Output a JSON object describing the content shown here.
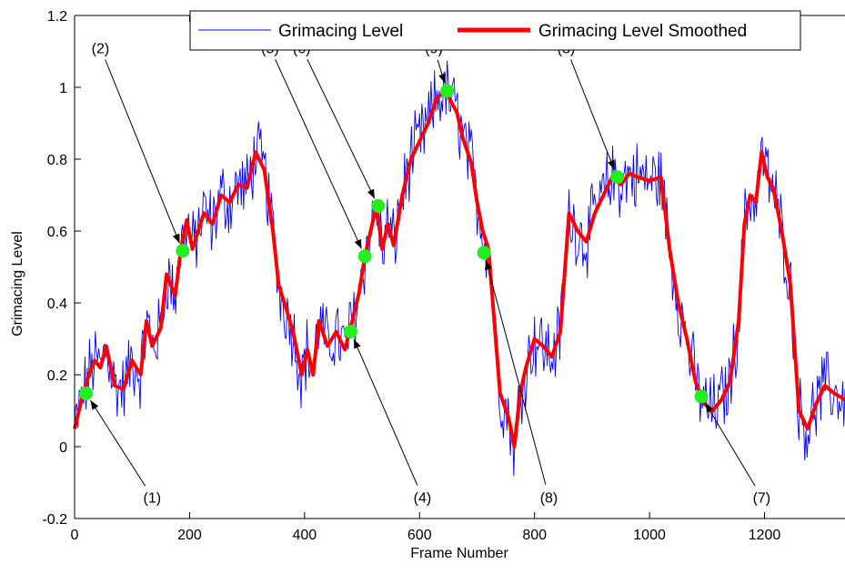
{
  "chart_data": {
    "type": "line",
    "title": "",
    "xlabel": "Frame Number",
    "ylabel": "Grimacing Level",
    "xlim": [
      0,
      1340
    ],
    "ylim": [
      -0.2,
      1.2
    ],
    "xticks": [
      0,
      200,
      400,
      600,
      800,
      1000,
      1200
    ],
    "yticks": [
      -0.2,
      0,
      0.2,
      0.4,
      0.6,
      0.8,
      1,
      1.2
    ],
    "xtick_labels": [
      "0",
      "200",
      "400",
      "600",
      "800",
      "1000",
      "1200"
    ],
    "ytick_labels": [
      "-0.2",
      "0",
      "0.2",
      "0.4",
      "0.6",
      "0.8",
      "1",
      "1.2"
    ],
    "grid": false,
    "legend_position": "top-right",
    "legend": [
      "Grimacing Level",
      "Grimacing Level Smoothed"
    ],
    "series": [
      {
        "name": "Grimacing Level",
        "color": "#0000ff",
        "noise_amplitude": 0.09,
        "description_points_from": "smoothed"
      },
      {
        "name": "Grimacing Level Smoothed",
        "color": "#ff0000",
        "x": [
          0,
          15,
          25,
          35,
          45,
          55,
          70,
          85,
          100,
          115,
          125,
          135,
          150,
          160,
          175,
          185,
          195,
          205,
          215,
          225,
          240,
          255,
          270,
          285,
          300,
          315,
          330,
          345,
          355,
          365,
          380,
          395,
          405,
          415,
          425,
          440,
          455,
          470,
          480,
          495,
          505,
          515,
          525,
          535,
          545,
          555,
          570,
          585,
          600,
          615,
          630,
          645,
          655,
          665,
          675,
          690,
          700,
          710,
          720,
          730,
          740,
          755,
          765,
          775,
          785,
          800,
          815,
          830,
          845,
          860,
          875,
          890,
          905,
          920,
          935,
          950,
          965,
          980,
          1000,
          1020,
          1035,
          1050,
          1065,
          1080,
          1095,
          1110,
          1125,
          1140,
          1155,
          1165,
          1175,
          1185,
          1195,
          1205,
          1215,
          1230,
          1245,
          1260,
          1275,
          1290,
          1305,
          1320,
          1340
        ],
        "y": [
          0.05,
          0.15,
          0.2,
          0.24,
          0.22,
          0.28,
          0.17,
          0.16,
          0.24,
          0.2,
          0.35,
          0.28,
          0.33,
          0.48,
          0.42,
          0.55,
          0.63,
          0.55,
          0.6,
          0.65,
          0.62,
          0.7,
          0.68,
          0.73,
          0.72,
          0.82,
          0.77,
          0.6,
          0.45,
          0.4,
          0.32,
          0.2,
          0.27,
          0.2,
          0.35,
          0.28,
          0.32,
          0.27,
          0.33,
          0.43,
          0.53,
          0.6,
          0.67,
          0.55,
          0.62,
          0.56,
          0.7,
          0.8,
          0.85,
          0.9,
          0.97,
          0.99,
          0.96,
          0.93,
          0.86,
          0.79,
          0.68,
          0.6,
          0.55,
          0.35,
          0.15,
          0.08,
          0.0,
          0.15,
          0.22,
          0.3,
          0.28,
          0.25,
          0.32,
          0.65,
          0.6,
          0.57,
          0.65,
          0.7,
          0.75,
          0.73,
          0.76,
          0.75,
          0.74,
          0.75,
          0.55,
          0.4,
          0.3,
          0.18,
          0.12,
          0.1,
          0.13,
          0.18,
          0.35,
          0.62,
          0.7,
          0.68,
          0.82,
          0.75,
          0.72,
          0.6,
          0.45,
          0.1,
          0.05,
          0.12,
          0.17,
          0.15,
          0.13
        ]
      }
    ],
    "markers": [
      {
        "x": 20,
        "y": 0.148,
        "label": "(1)",
        "tx": 135,
        "ty": -0.14
      },
      {
        "x": 188,
        "y": 0.545,
        "label": "(2)",
        "tx": 45,
        "ty": 1.11
      },
      {
        "x": 944,
        "y": 0.75,
        "label": "(3)",
        "tx": 855,
        "ty": 1.11
      },
      {
        "x": 480,
        "y": 0.32,
        "label": "(4)",
        "tx": 605,
        "ty": -0.14
      },
      {
        "x": 505,
        "y": 0.53,
        "label": "(5)",
        "tx": 340,
        "ty": 1.11
      },
      {
        "x": 528,
        "y": 0.67,
        "label": "(6)",
        "tx": 395,
        "ty": 1.11
      },
      {
        "x": 1090,
        "y": 0.14,
        "label": "(7)",
        "tx": 1195,
        "ty": -0.14
      },
      {
        "x": 712,
        "y": 0.54,
        "label": "(8)",
        "tx": 825,
        "ty": -0.14
      },
      {
        "x": 648,
        "y": 0.99,
        "label": "(9)",
        "tx": 625,
        "ty": 1.11
      }
    ],
    "marker_color": "#22ee22"
  }
}
